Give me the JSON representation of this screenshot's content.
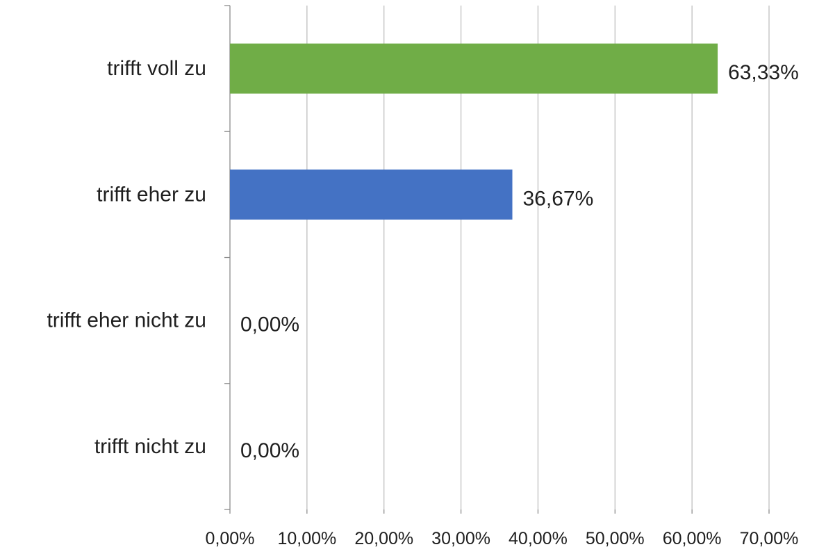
{
  "chart_data": {
    "type": "bar",
    "orientation": "horizontal",
    "categories": [
      "trifft voll zu",
      "trifft eher zu",
      "trifft eher nicht zu",
      "trifft nicht zu"
    ],
    "values": [
      63.33,
      36.67,
      0.0,
      0.0
    ],
    "value_labels": [
      "63,33%",
      "36,67%",
      "0,00%",
      "0,00%"
    ],
    "bar_colors": [
      "#70ad47",
      "#4472c4",
      "#4472c4",
      "#4472c4"
    ],
    "xlim": [
      0,
      70
    ],
    "xticks": [
      0,
      10,
      20,
      30,
      40,
      50,
      60,
      70
    ],
    "xtick_labels": [
      "0,00%",
      "10,00%",
      "20,00%",
      "30,00%",
      "40,00%",
      "50,00%",
      "60,00%",
      "70,00%"
    ],
    "grid": "vertical",
    "legend": "none"
  }
}
